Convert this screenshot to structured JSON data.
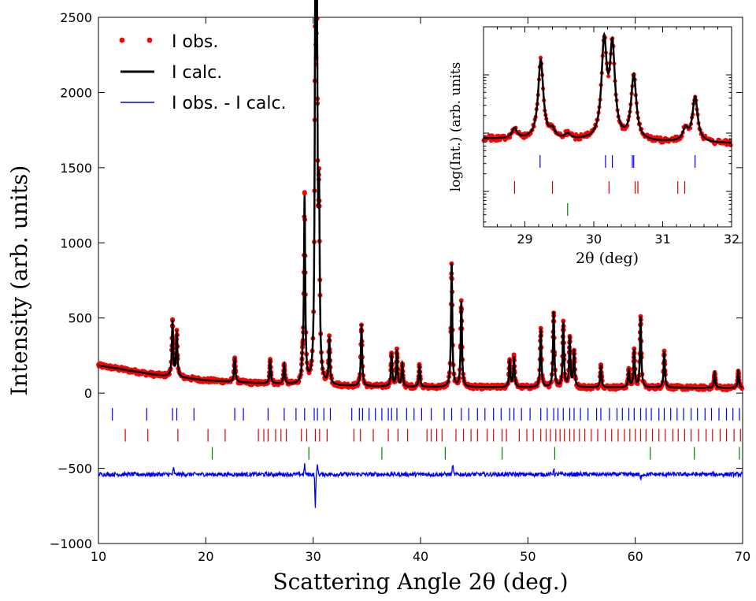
{
  "colors": {
    "observed": "#ff0000",
    "calculated": "#000000",
    "difference": "#0000ff",
    "phase1_ticks": "#0000ff",
    "phase2_ticks": "#dd0000",
    "phase3_ticks": "#008000"
  },
  "chart_data": [
    {
      "type": "line",
      "title": "",
      "xlabel": "Scattering Angle 2θ (deg.)",
      "ylabel": "Intensity (arb. units)",
      "xlim": [
        10,
        70
      ],
      "ylim": [
        -1000,
        2500
      ],
      "xticks": [
        "10",
        "20",
        "30",
        "40",
        "50",
        "60",
        "70"
      ],
      "yticks": [
        "−1000",
        "−500",
        "0",
        "500",
        "1000",
        "1500",
        "2000",
        "2500"
      ],
      "legend": {
        "position": "top-left",
        "entries": [
          "I obs.",
          "I calc.",
          "I obs. - I calc."
        ]
      },
      "background": {
        "x": [
          10,
          15,
          20,
          25,
          30,
          35,
          40,
          50,
          60,
          70
        ],
        "y": [
          185,
          125,
          85,
          65,
          50,
          45,
          40,
          38,
          37,
          35
        ]
      },
      "peaks": [
        {
          "x": 16.9,
          "height": 370
        },
        {
          "x": 17.3,
          "height": 300
        },
        {
          "x": 22.7,
          "height": 160
        },
        {
          "x": 26.0,
          "height": 160
        },
        {
          "x": 27.3,
          "height": 130
        },
        {
          "x": 29.0,
          "height": 100
        },
        {
          "x": 29.2,
          "height": 1230
        },
        {
          "x": 30.2,
          "height": 2300
        },
        {
          "x": 30.35,
          "height": 2200
        },
        {
          "x": 30.55,
          "height": 1100
        },
        {
          "x": 31.5,
          "height": 310
        },
        {
          "x": 34.5,
          "height": 410
        },
        {
          "x": 37.3,
          "height": 220
        },
        {
          "x": 37.8,
          "height": 240
        },
        {
          "x": 38.3,
          "height": 150
        },
        {
          "x": 39.9,
          "height": 150
        },
        {
          "x": 42.9,
          "height": 820
        },
        {
          "x": 43.8,
          "height": 570
        },
        {
          "x": 48.3,
          "height": 180
        },
        {
          "x": 48.7,
          "height": 200
        },
        {
          "x": 51.2,
          "height": 390
        },
        {
          "x": 52.4,
          "height": 500
        },
        {
          "x": 53.3,
          "height": 430
        },
        {
          "x": 53.9,
          "height": 330
        },
        {
          "x": 54.3,
          "height": 240
        },
        {
          "x": 56.8,
          "height": 150
        },
        {
          "x": 59.4,
          "height": 120
        },
        {
          "x": 59.9,
          "height": 250
        },
        {
          "x": 60.5,
          "height": 470
        },
        {
          "x": 62.7,
          "height": 240
        },
        {
          "x": 67.4,
          "height": 100
        },
        {
          "x": 69.6,
          "height": 110
        }
      ],
      "difference_offset": -540,
      "difference_spikes": [
        {
          "x": 17.0,
          "value": -500
        },
        {
          "x": 29.2,
          "value": -480
        },
        {
          "x": 30.2,
          "value": -750
        },
        {
          "x": 30.4,
          "value": -470
        },
        {
          "x": 43.0,
          "value": -470
        },
        {
          "x": 52.4,
          "value": -500
        },
        {
          "x": 60.5,
          "value": -580
        }
      ],
      "phase_ticks": [
        {
          "row": 1,
          "y": -140,
          "x": [
            11.3,
            14.5,
            16.9,
            17.3,
            18.9,
            22.7,
            23.5,
            25.8,
            27.3,
            28.4,
            29.2,
            30.1,
            30.4,
            31.0,
            31.6,
            33.6,
            34.3,
            34.6,
            35.2,
            35.8,
            36.4,
            37.0,
            37.3,
            37.8,
            38.7,
            39.4,
            40.1,
            41.0,
            42.2,
            42.9,
            43.8,
            44.5,
            45.3,
            46.0,
            46.8,
            47.5,
            48.3,
            48.7,
            49.4,
            50.2,
            51.2,
            51.8,
            52.4,
            52.8,
            53.3,
            53.9,
            54.3,
            54.9,
            55.6,
            56.4,
            56.8,
            57.6,
            58.3,
            58.8,
            59.4,
            59.9,
            60.5,
            61.0,
            61.5,
            62.2,
            62.7,
            63.3,
            63.9,
            64.5,
            65.2,
            65.8,
            66.5,
            67.1,
            67.8,
            68.5,
            69.1,
            69.7
          ]
        },
        {
          "row": 2,
          "y": -280,
          "x": [
            12.5,
            14.6,
            17.4,
            20.2,
            21.8,
            24.9,
            25.4,
            25.8,
            26.5,
            27.0,
            27.5,
            28.9,
            29.4,
            30.2,
            30.6,
            31.3,
            33.8,
            34.4,
            35.6,
            37.0,
            37.9,
            38.8,
            40.6,
            41.0,
            41.5,
            42.0,
            43.3,
            44.0,
            44.7,
            45.3,
            46.2,
            46.8,
            47.6,
            48.0,
            49.2,
            49.9,
            50.5,
            51.2,
            51.7,
            52.1,
            52.6,
            53.0,
            53.4,
            53.9,
            54.3,
            54.8,
            55.3,
            55.9,
            56.5,
            57.2,
            57.8,
            58.4,
            59.0,
            59.5,
            60.0,
            60.5,
            61.0,
            61.6,
            62.2,
            62.8,
            63.5,
            64.0,
            64.6,
            65.2,
            65.9,
            66.6,
            67.2,
            67.9,
            68.5,
            69.2,
            69.8
          ]
        },
        {
          "row": 3,
          "y": -400,
          "x": [
            20.6,
            29.6,
            36.4,
            42.3,
            47.6,
            52.5,
            61.4,
            65.5,
            69.7
          ]
        }
      ]
    },
    {
      "type": "line",
      "title": "",
      "xlabel": "2θ (deg)",
      "ylabel": "log(Int.) (arb. units",
      "xlim": [
        28.4,
        32
      ],
      "yscale": "log",
      "xticks": [
        "29",
        "30",
        "31",
        "32"
      ],
      "peaks": [
        {
          "x": 28.85,
          "height": 0.1
        },
        {
          "x": 29.23,
          "height": 0.8
        },
        {
          "x": 29.4,
          "height": 0.08
        },
        {
          "x": 29.62,
          "height": 0.05
        },
        {
          "x": 30.15,
          "height": 0.95
        },
        {
          "x": 30.27,
          "height": 0.9
        },
        {
          "x": 30.58,
          "height": 0.65
        },
        {
          "x": 31.33,
          "height": 0.12
        },
        {
          "x": 31.47,
          "height": 0.45
        }
      ],
      "phase_ticks": [
        {
          "row": 1,
          "x": [
            29.22,
            30.17,
            30.27,
            30.56,
            30.58,
            31.47
          ]
        },
        {
          "row": 2,
          "x": [
            28.85,
            29.4,
            30.22,
            30.6,
            30.64,
            31.22,
            31.32
          ]
        },
        {
          "row": 3,
          "x": [
            29.62
          ]
        }
      ]
    }
  ]
}
